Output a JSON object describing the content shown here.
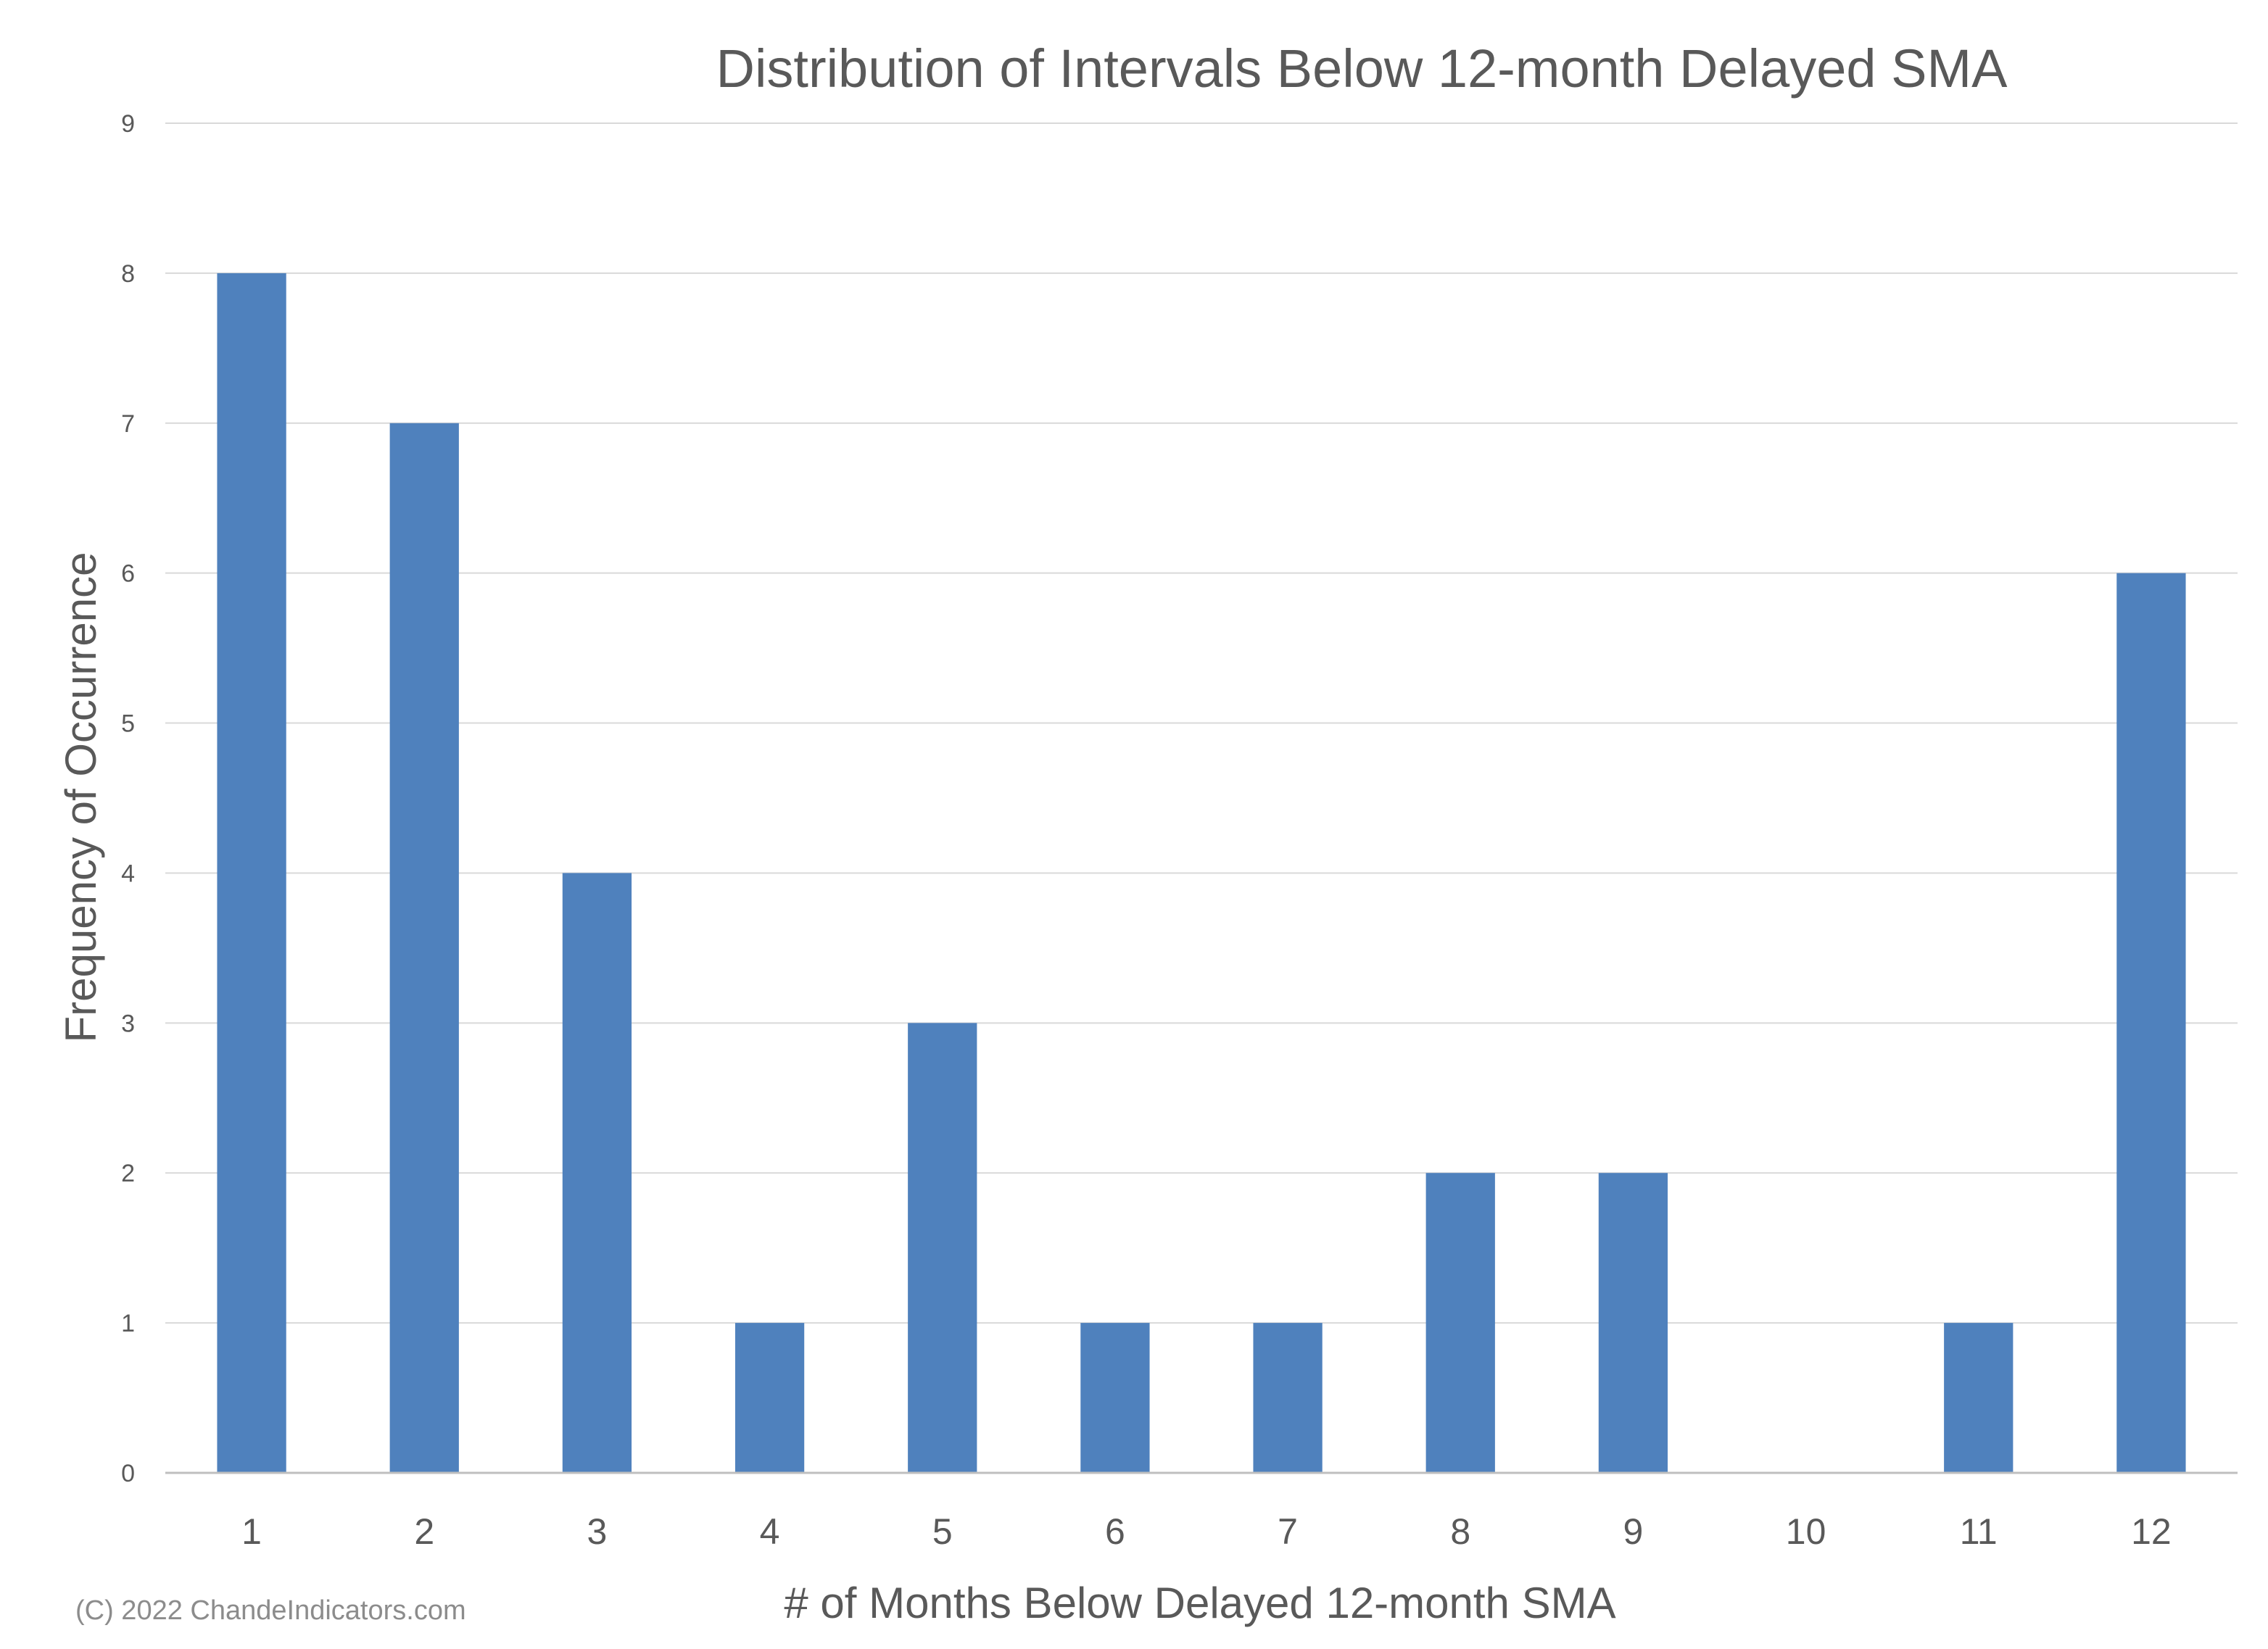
{
  "chart_data": {
    "type": "bar",
    "title": "Distribution of Intervals Below 12-month Delayed SMA",
    "xlabel": "# of Months Below Delayed 12-month SMA",
    "ylabel": "Frequency of Occurrence",
    "categories": [
      "1",
      "2",
      "3",
      "4",
      "5",
      "6",
      "7",
      "8",
      "9",
      "10",
      "11",
      "12"
    ],
    "values": [
      8,
      7,
      4,
      1,
      3,
      1,
      1,
      2,
      2,
      0,
      1,
      6
    ],
    "ylim": [
      0,
      9
    ],
    "yticks": [
      "0",
      "1",
      "2",
      "3",
      "4",
      "5",
      "6",
      "7",
      "8",
      "9"
    ],
    "grid": true,
    "legend": "none",
    "bar_color": "#4f81bd",
    "grid_color": "#d9d9d9",
    "text_color": "#595959"
  },
  "copyright": "(C) 2022 ChandeIndicators.com"
}
